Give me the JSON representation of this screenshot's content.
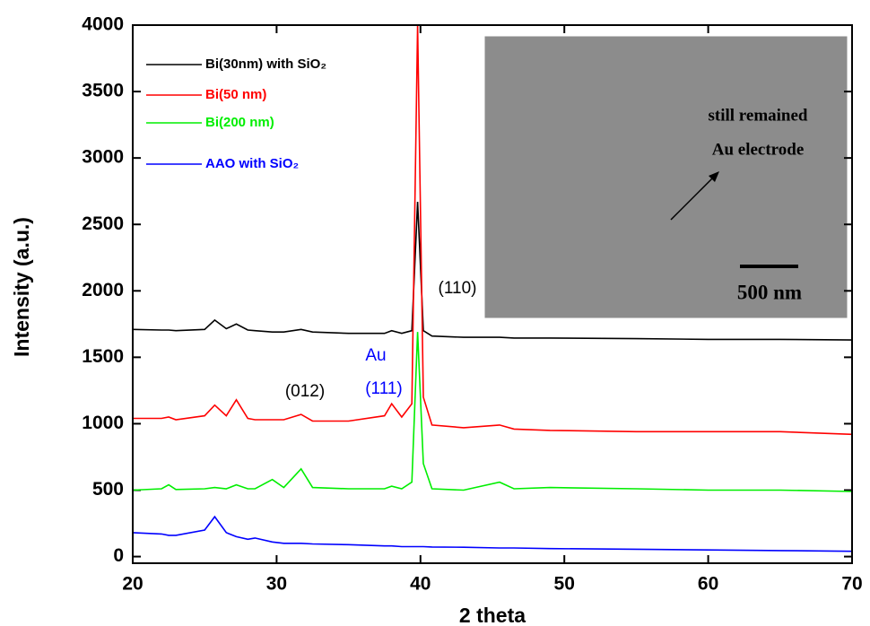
{
  "chart_data": {
    "type": "line",
    "xlabel": "2 theta",
    "ylabel": "Intensity (a.u.)",
    "xlim": [
      20,
      70
    ],
    "xticks": [
      20,
      30,
      40,
      50,
      60,
      70
    ],
    "ylim": [
      -50,
      4000
    ],
    "yticks": [
      0,
      500,
      1000,
      1500,
      2000,
      2500,
      3000,
      3500,
      4000
    ],
    "x": [
      20,
      22,
      22.5,
      23,
      25,
      25.7,
      26.5,
      27.2,
      28,
      28.5,
      29.7,
      30.5,
      31.7,
      32.5,
      35,
      37.5,
      38,
      38.7,
      39.4,
      39.8,
      40.2,
      40.8,
      43,
      45.5,
      46.5,
      49,
      55,
      60,
      65,
      70
    ],
    "series": [
      {
        "name": "Bi(30nm) with SiO₂",
        "color": "#000000",
        "values": [
          1710,
          1705,
          1705,
          1700,
          1710,
          1780,
          1715,
          1750,
          1705,
          1700,
          1690,
          1690,
          1710,
          1690,
          1680,
          1680,
          1700,
          1680,
          1700,
          2670,
          1700,
          1660,
          1650,
          1650,
          1645,
          1645,
          1640,
          1635,
          1635,
          1630
        ]
      },
      {
        "name": "Bi(50 nm)",
        "color": "#ff0000",
        "values": [
          1040,
          1040,
          1050,
          1030,
          1060,
          1140,
          1060,
          1180,
          1040,
          1030,
          1030,
          1030,
          1070,
          1020,
          1020,
          1060,
          1150,
          1050,
          1150,
          4000,
          1200,
          990,
          970,
          990,
          960,
          950,
          940,
          940,
          940,
          920
        ]
      },
      {
        "name": "Bi(200 nm)",
        "color": "#00ee00",
        "values": [
          500,
          510,
          540,
          505,
          510,
          520,
          510,
          540,
          510,
          510,
          580,
          520,
          660,
          520,
          510,
          510,
          530,
          510,
          560,
          1690,
          700,
          510,
          500,
          560,
          510,
          520,
          510,
          500,
          500,
          490
        ]
      },
      {
        "name": "AAO with SiO₂",
        "color": "#0000ff",
        "values": [
          180,
          170,
          160,
          160,
          200,
          300,
          180,
          150,
          130,
          140,
          110,
          100,
          100,
          95,
          90,
          80,
          80,
          75,
          75,
          75,
          75,
          72,
          70,
          65,
          65,
          60,
          55,
          50,
          45,
          40
        ]
      }
    ],
    "annotations": [
      {
        "text": "(110)",
        "color": "#000000"
      },
      {
        "text": "(012)",
        "color": "#000000"
      },
      {
        "text": "Au",
        "color": "#0000ff"
      },
      {
        "text": "(111)",
        "color": "#0000ff"
      }
    ],
    "inset": {
      "labels": [
        "still remained",
        "Au electrode",
        "500 nm"
      ]
    }
  }
}
